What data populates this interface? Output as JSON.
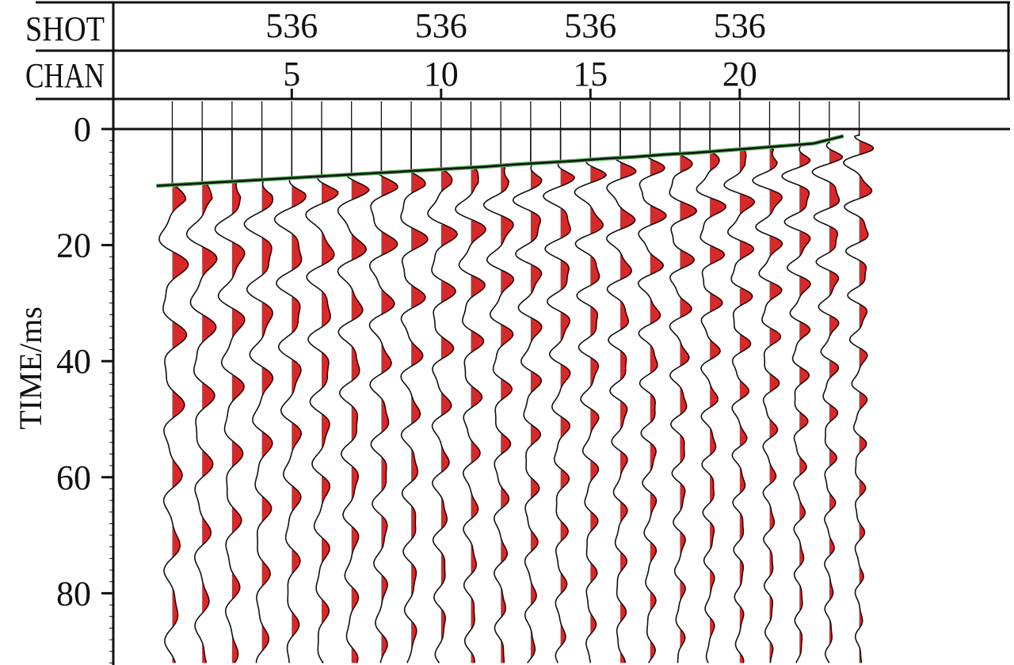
{
  "chart_data": {
    "type": "seismic-wiggle",
    "header": {
      "shot_label": "SHOT",
      "chan_label": "CHAN",
      "shot_ticks": [
        "536",
        "536",
        "536",
        "536"
      ],
      "chan_ticks": [
        "5",
        "10",
        "15",
        "20"
      ]
    },
    "channels": [
      1,
      2,
      3,
      4,
      5,
      6,
      7,
      8,
      9,
      10,
      11,
      12,
      13,
      14,
      15,
      16,
      17,
      18,
      19,
      20,
      21,
      22,
      23,
      24
    ],
    "chan_tick_values": [
      5,
      10,
      15,
      20
    ],
    "ylabel": "TIME/ms",
    "ylim": [
      0,
      92
    ],
    "y_ticks": [
      0,
      20,
      40,
      60,
      80
    ],
    "y_tick_labels": [
      "0",
      "20",
      "40",
      "60",
      "80"
    ],
    "first_break_ms": [
      9.8,
      9.5,
      9.2,
      8.9,
      8.6,
      8.3,
      8.0,
      7.7,
      7.4,
      7.1,
      6.8,
      6.5,
      6.1,
      5.8,
      5.5,
      5.1,
      4.8,
      4.4,
      4.1,
      3.7,
      3.3,
      2.9,
      2.5,
      1.2
    ],
    "fill_color": "#d62a2a",
    "pick_line_color": "#4caf50",
    "trace_color": "#111111",
    "fill_polarity": "positive"
  }
}
